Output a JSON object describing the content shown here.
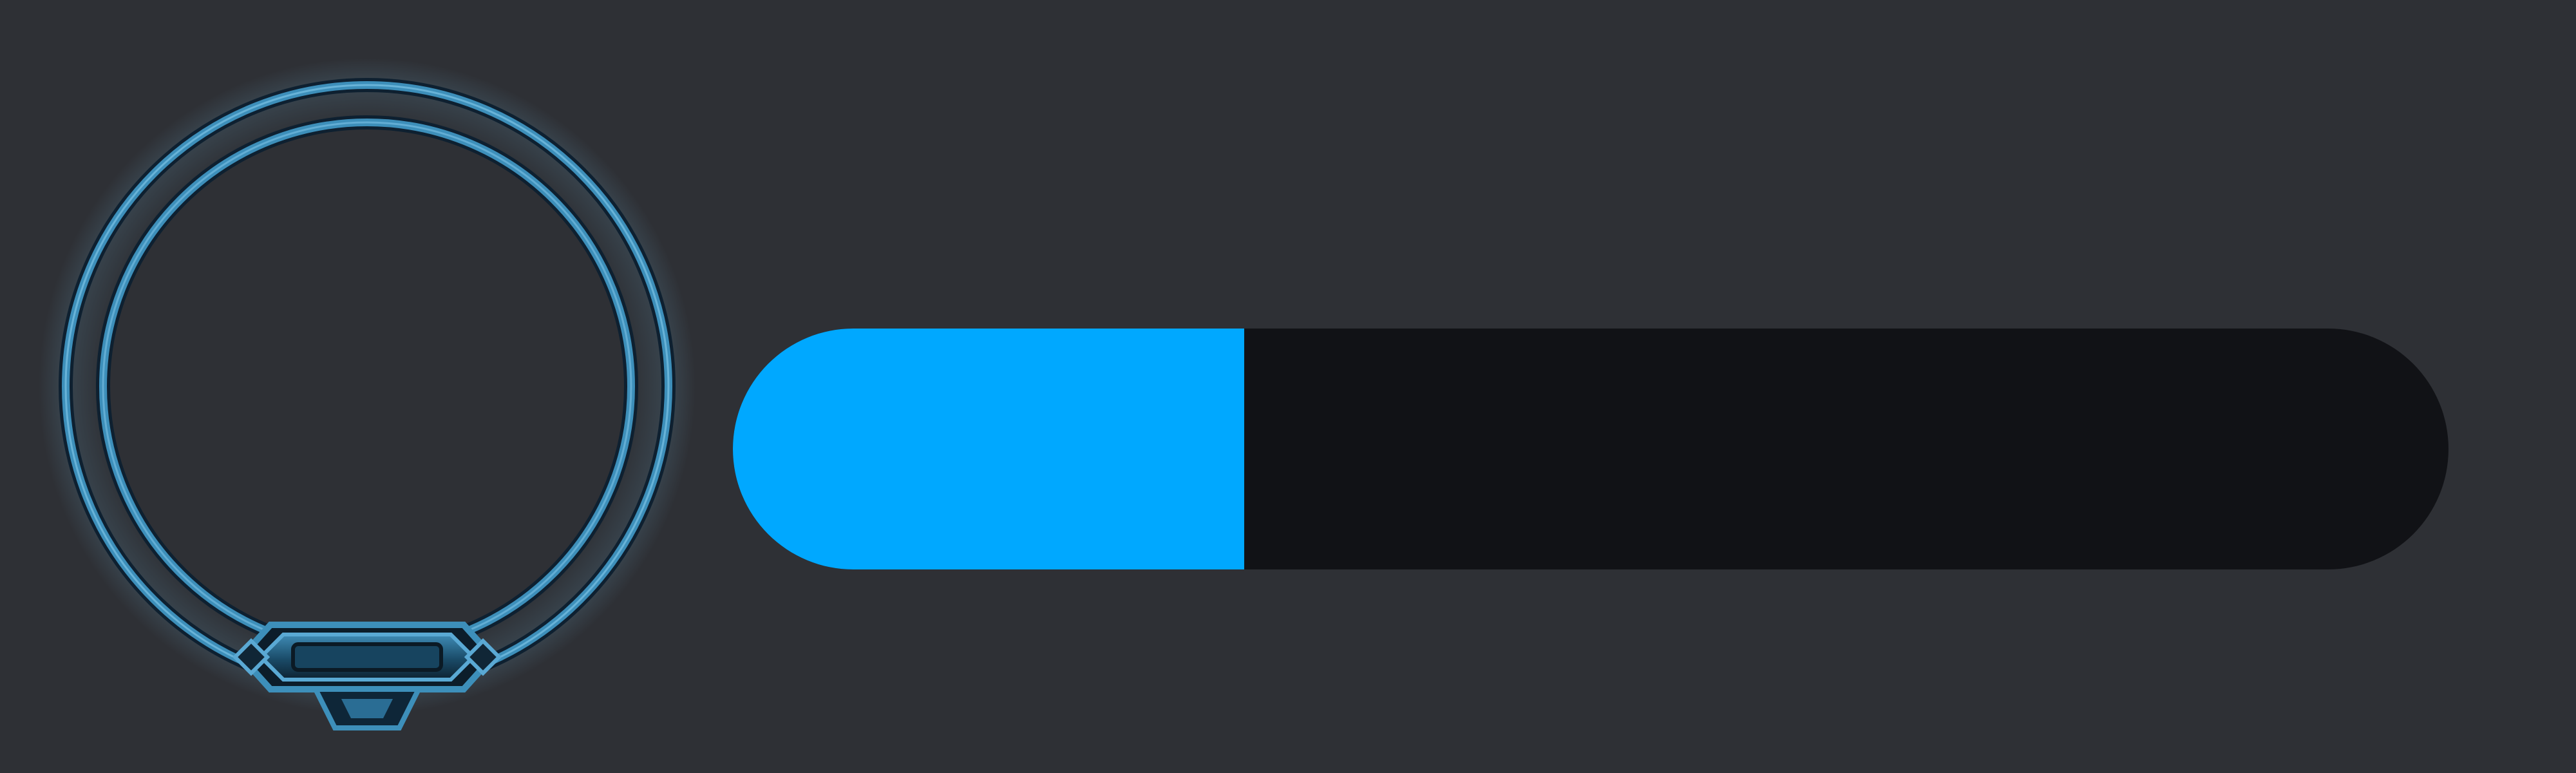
{
  "colors": {
    "background": "#2e3035",
    "bar_fill": "#00a8ff",
    "bar_track": "#111216",
    "frame_blue": "#3d8fba",
    "frame_dark": "#0e2030"
  },
  "portrait_frame": {
    "icon": "ornate-ring-frame-icon"
  },
  "progress": {
    "value": 0.2979
  }
}
